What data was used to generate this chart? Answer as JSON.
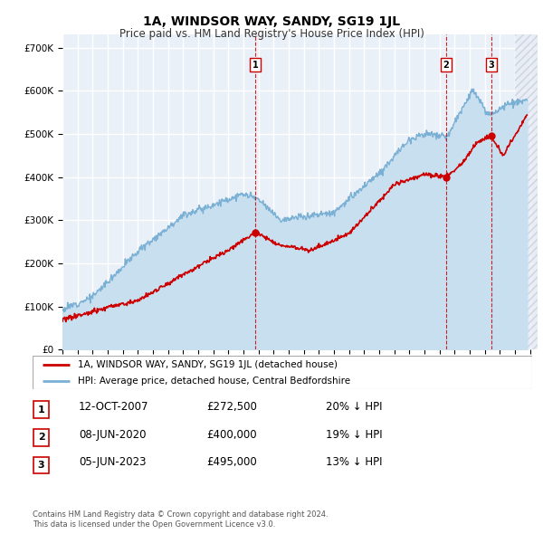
{
  "title": "1A, WINDSOR WAY, SANDY, SG19 1JL",
  "subtitle": "Price paid vs. HM Land Registry's House Price Index (HPI)",
  "legend_label_red": "1A, WINDSOR WAY, SANDY, SG19 1JL (detached house)",
  "legend_label_blue": "HPI: Average price, detached house, Central Bedfordshire",
  "transactions": [
    {
      "num": 1,
      "date": "12-OCT-2007",
      "year": 2007.79,
      "price": 272500,
      "pct": "20%"
    },
    {
      "num": 2,
      "date": "08-JUN-2020",
      "year": 2020.44,
      "price": 400000,
      "pct": "19%"
    },
    {
      "num": 3,
      "date": "05-JUN-2023",
      "year": 2023.43,
      "price": 495000,
      "pct": "13%"
    }
  ],
  "footnote1": "Contains HM Land Registry data © Crown copyright and database right 2024.",
  "footnote2": "This data is licensed under the Open Government Licence v3.0.",
  "xlim_left": 1995.0,
  "xlim_right": 2026.5,
  "ylim_bottom": 0,
  "ylim_top": 730000,
  "yticks": [
    0,
    100000,
    200000,
    300000,
    400000,
    500000,
    600000,
    700000
  ],
  "ytick_labels": [
    "£0",
    "£100K",
    "£200K",
    "£300K",
    "£400K",
    "£500K",
    "£600K",
    "£700K"
  ],
  "bg_color": "#eaf0f8",
  "red_color": "#cc0000",
  "blue_color": "#7ab0d4",
  "blue_fill": "#c8dff0",
  "grid_color": "#ffffff",
  "hatch_color": "#c0c8d8"
}
